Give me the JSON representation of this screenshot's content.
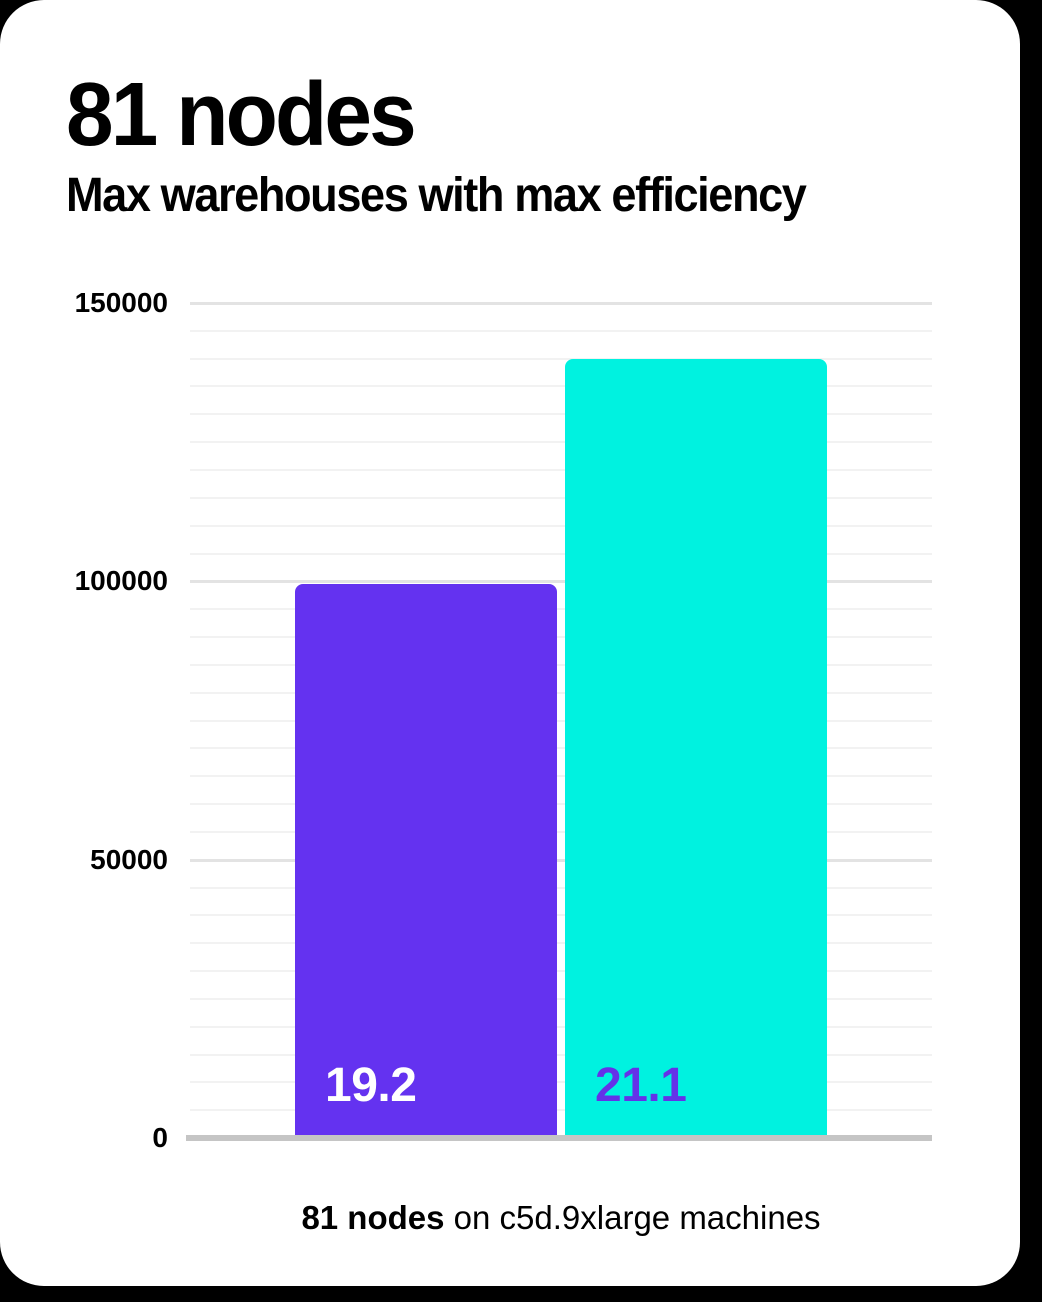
{
  "card": {
    "title": "81 nodes",
    "subtitle": "Max warehouses with max efficiency"
  },
  "caption": {
    "bold": "81 nodes",
    "rest": " on c5d.9xlarge machines"
  },
  "colors": {
    "background": "#000000",
    "card": "#ffffff",
    "text": "#000000",
    "bar_primary": "#6432f0",
    "bar_secondary": "#00f2e0",
    "bar_label_on_primary": "#ffffff",
    "bar_label_on_secondary": "#6432e8",
    "grid_major": "#e3e3e3",
    "grid_minor": "#f2f2f2",
    "axis_baseline": "#c5c5c5"
  },
  "chart_data": {
    "type": "bar",
    "title": "81 nodes",
    "subtitle": "Max warehouses with max efficiency",
    "caption": "81 nodes on c5d.9xlarge machines",
    "xlabel": "",
    "ylabel": "",
    "ylim": [
      0,
      150000
    ],
    "y_major_step": 50000,
    "y_minor_step": 5000,
    "y_tick_values": [
      0,
      50000,
      100000,
      150000
    ],
    "y_tick_labels": [
      "0",
      "50000",
      "100000",
      "150000"
    ],
    "grid": "horizontal",
    "legend": "none",
    "bars": [
      {
        "label": "19.2",
        "value": 99500,
        "color": "#6432f0",
        "label_color": "#ffffff"
      },
      {
        "label": "21.1",
        "value": 140000,
        "color": "#00f2e0",
        "label_color": "#6432e8"
      }
    ]
  }
}
